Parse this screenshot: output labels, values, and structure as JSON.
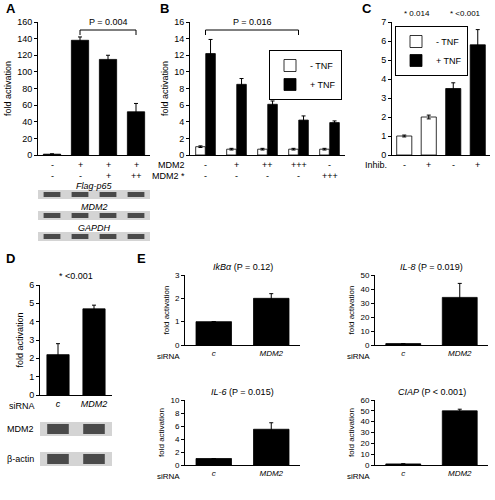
{
  "chart_data": [
    {
      "type": "bar",
      "panel": "A",
      "ylabel": "fold activation",
      "categories": [
        null,
        null,
        null,
        null
      ],
      "values": [
        1,
        138,
        115,
        52
      ],
      "errors": [
        0.5,
        4,
        5,
        10
      ],
      "color": "#000000",
      "ylim": [
        0,
        160
      ],
      "yticks": [
        0,
        20,
        40,
        60,
        80,
        100,
        120,
        140,
        160
      ],
      "grid": false,
      "tick_labels": "y",
      "conditions": [
        {
          "marks": [
            "-",
            "+",
            "+",
            "+"
          ]
        },
        {
          "marks": [
            "-",
            "-",
            "+",
            "++"
          ]
        }
      ],
      "brackets": [
        {
          "text": "P = 0.004",
          "from": 1,
          "to": 3
        }
      ],
      "blot_labels": [
        "Flag-p65",
        "MDM2",
        "GAPDH"
      ]
    },
    {
      "type": "bar",
      "panel": "B",
      "ylabel": "fold activation",
      "categories": [
        null,
        null,
        null,
        null,
        null
      ],
      "series": [
        {
          "name": "- TNF",
          "color": "#ffffff",
          "values": [
            1,
            0.7,
            0.7,
            0.7,
            0.7
          ],
          "errors": [
            0.1,
            0.1,
            0.1,
            0.1,
            0.1
          ]
        },
        {
          "name": "+ TNF",
          "color": "#000000",
          "values": [
            12.2,
            8.5,
            6.1,
            4.2,
            3.9
          ],
          "errors": [
            1.7,
            0.7,
            0.4,
            0.5,
            0.2
          ]
        }
      ],
      "ylim": [
        0,
        16
      ],
      "yticks": [
        0,
        2,
        4,
        6,
        8,
        10,
        12,
        14,
        16
      ],
      "grid": false,
      "tick_labels": "y",
      "legend": "upper right",
      "conditions": [
        {
          "label": "MDM2",
          "marks": [
            "-",
            "+",
            "++",
            "+++",
            "-"
          ]
        },
        {
          "label": "MDM2 *",
          "marks": [
            "-",
            "-",
            "-",
            "-",
            "+++"
          ]
        }
      ],
      "brackets": [
        {
          "text": "P = 0.016",
          "from": 0,
          "to": 3
        }
      ]
    },
    {
      "type": "bar",
      "panel": "C",
      "categories": [
        null,
        null,
        null,
        null
      ],
      "series": [
        {
          "name": "- TNF",
          "color": "#ffffff",
          "values": [
            1,
            2,
            null,
            null
          ],
          "errors": [
            0.05,
            0.1,
            null,
            null
          ]
        },
        {
          "name": "+ TNF",
          "color": "#000000",
          "values": [
            null,
            null,
            3.5,
            5.8
          ],
          "errors": [
            null,
            null,
            0.3,
            0.8
          ]
        }
      ],
      "ylim": [
        0,
        7
      ],
      "yticks": [
        0,
        1,
        2,
        3,
        4,
        5,
        6,
        7
      ],
      "grid": false,
      "tick_labels": "y",
      "legend": "upper left",
      "conditions": [
        {
          "label": "Inhib.",
          "marks": [
            "-",
            "+",
            "-",
            "+"
          ]
        }
      ],
      "annotations": [
        {
          "text": "* 0.014",
          "from": 0,
          "to": 1
        },
        {
          "text": "* <0.001",
          "from": 2,
          "to": 3
        }
      ]
    },
    {
      "type": "bar",
      "panel": "D",
      "ylabel": "fold activation",
      "xlabel": "siRNA",
      "categories": [
        "c",
        "MDM2"
      ],
      "values": [
        2.2,
        4.7
      ],
      "errors": [
        0.6,
        0.2
      ],
      "color": "#000000",
      "ylim": [
        0,
        6
      ],
      "yticks": [
        0,
        1,
        2,
        3,
        4,
        5,
        6
      ],
      "grid": false,
      "annotations": [
        {
          "text": "* <0.001",
          "from": 0,
          "to": 1
        }
      ],
      "blot_labels": [
        "MDM2",
        "β-actin"
      ]
    },
    {
      "type": "bar",
      "panel": "E",
      "title": "IkBα (P = 0.12)",
      "ylabel": "fold activation",
      "xlabel": "siRNA",
      "categories": [
        "c",
        "MDM2"
      ],
      "values": [
        1,
        2
      ],
      "errors": [
        0,
        0.2
      ],
      "color": "#000000",
      "ylim": [
        0,
        3
      ],
      "yticks": [
        0,
        1,
        2,
        3
      ],
      "grid": false
    },
    {
      "type": "bar",
      "title": "IL-8 (P = 0.019)",
      "ylabel": "fold activation",
      "xlabel": "siRNA",
      "categories": [
        "c",
        "MDM2"
      ],
      "values": [
        1,
        34
      ],
      "errors": [
        0,
        10
      ],
      "color": "#000000",
      "ylim": [
        0,
        50
      ],
      "yticks": [
        0,
        10,
        20,
        30,
        40,
        50
      ],
      "grid": false
    },
    {
      "type": "bar",
      "title": "IL-6 (P = 0.015)",
      "ylabel": "fold activation",
      "xlabel": "siRNA",
      "categories": [
        "c",
        "MDM2"
      ],
      "values": [
        1,
        5.5
      ],
      "errors": [
        0,
        1
      ],
      "color": "#000000",
      "ylim": [
        0,
        10
      ],
      "yticks": [
        0,
        2,
        4,
        6,
        8,
        10
      ],
      "grid": false
    },
    {
      "type": "bar",
      "title": "CIAP (P < 0.001)",
      "ylabel": "fold activation",
      "xlabel": "siRNA",
      "categories": [
        "c",
        "MDM2"
      ],
      "values": [
        1,
        50
      ],
      "errors": [
        0,
        1.5
      ],
      "color": "#000000",
      "ylim": [
        0,
        60
      ],
      "yticks": [
        0,
        10,
        20,
        30,
        40,
        50,
        60
      ],
      "grid": false
    }
  ]
}
